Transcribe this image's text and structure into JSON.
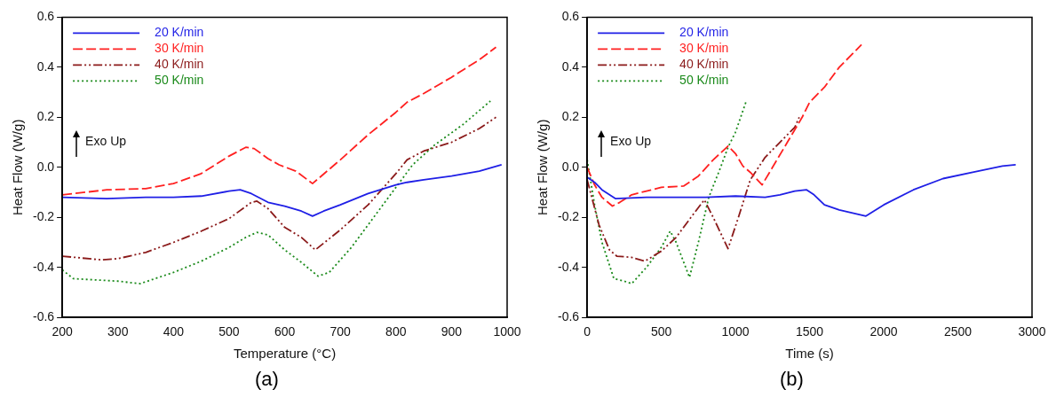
{
  "chart_data": [
    {
      "type": "line",
      "xlabel": "Temperature (°C)",
      "ylabel": "Heat Flow (W/g)",
      "annotations": [
        "Exo Up",
        "(a)"
      ],
      "xlim": [
        200,
        1000
      ],
      "xticks": [
        200,
        300,
        400,
        500,
        600,
        700,
        800,
        900,
        1000
      ],
      "ylim": [
        -0.6,
        0.6
      ],
      "yticks": [
        -0.6,
        -0.4,
        -0.2,
        {
          "value": 0,
          "label": "0.0"
        },
        0.2,
        0.4,
        0.6
      ],
      "grid": false,
      "legend": "top left",
      "marker": "none",
      "series": [
        {
          "name": "20 K/min",
          "color": "#1f1fe6",
          "line_style": "solid",
          "x": [
            200,
            280,
            350,
            400,
            450,
            500,
            520,
            540,
            570,
            600,
            630,
            650,
            670,
            700,
            750,
            800,
            820,
            850,
            900,
            950,
            990
          ],
          "values": [
            -0.12,
            -0.125,
            -0.12,
            -0.12,
            -0.115,
            -0.095,
            -0.09,
            -0.105,
            -0.14,
            -0.155,
            -0.175,
            -0.195,
            -0.175,
            -0.15,
            -0.105,
            -0.07,
            -0.06,
            -0.05,
            -0.035,
            -0.015,
            0.01
          ]
        },
        {
          "name": "30 K/min",
          "color": "#ff2020",
          "line_style": "dashed",
          "x": [
            200,
            280,
            350,
            400,
            450,
            500,
            530,
            545,
            570,
            590,
            620,
            650,
            700,
            750,
            800,
            820,
            850,
            900,
            950,
            980
          ],
          "values": [
            -0.11,
            -0.09,
            -0.085,
            -0.065,
            -0.025,
            0.045,
            0.08,
            0.075,
            0.035,
            0.01,
            -0.015,
            -0.065,
            0.03,
            0.13,
            0.22,
            0.26,
            0.295,
            0.36,
            0.43,
            0.48
          ]
        },
        {
          "name": "40 K/min",
          "color": "#8b1a1a",
          "line_style": "dashdot",
          "x": [
            200,
            270,
            300,
            350,
            400,
            450,
            500,
            540,
            550,
            570,
            600,
            630,
            655,
            700,
            750,
            780,
            800,
            820,
            850,
            900,
            950,
            980
          ],
          "values": [
            -0.355,
            -0.37,
            -0.365,
            -0.34,
            -0.3,
            -0.255,
            -0.205,
            -0.14,
            -0.135,
            -0.165,
            -0.24,
            -0.28,
            -0.33,
            -0.25,
            -0.15,
            -0.075,
            -0.025,
            0.03,
            0.065,
            0.1,
            0.155,
            0.2
          ]
        },
        {
          "name": "50 K/min",
          "color": "#1a8a1a",
          "line_style": "dotted",
          "x": [
            200,
            220,
            260,
            300,
            340,
            400,
            450,
            500,
            530,
            550,
            570,
            600,
            630,
            660,
            680,
            720,
            760,
            800,
            830,
            870,
            920,
            970
          ],
          "values": [
            -0.41,
            -0.445,
            -0.45,
            -0.455,
            -0.465,
            -0.42,
            -0.375,
            -0.32,
            -0.28,
            -0.26,
            -0.27,
            -0.33,
            -0.38,
            -0.435,
            -0.42,
            -0.32,
            -0.2,
            -0.08,
            0.01,
            0.09,
            0.17,
            0.265
          ]
        }
      ]
    },
    {
      "type": "line",
      "xlabel": "Time (s)",
      "ylabel": "Heat Flow (W/g)",
      "annotations": [
        "Exo Up",
        "(b)"
      ],
      "xlim": [
        0,
        3000
      ],
      "xticks": [
        0,
        500,
        1000,
        1500,
        2000,
        2500,
        3000
      ],
      "ylim": [
        -0.6,
        0.6
      ],
      "yticks": [
        -0.6,
        -0.4,
        -0.2,
        {
          "value": 0,
          "label": "0.0"
        },
        0.2,
        0.4,
        0.6
      ],
      "grid": false,
      "legend": "top left",
      "marker": "none",
      "series": [
        {
          "name": "20 K/min",
          "color": "#1f1fe6",
          "line_style": "solid",
          "x": [
            0,
            50,
            100,
            190,
            400,
            800,
            1000,
            1200,
            1300,
            1400,
            1480,
            1530,
            1600,
            1700,
            1880,
            2000,
            2200,
            2400,
            2600,
            2800,
            2890
          ],
          "values": [
            -0.04,
            -0.06,
            -0.09,
            -0.125,
            -0.12,
            -0.12,
            -0.115,
            -0.12,
            -0.11,
            -0.095,
            -0.09,
            -0.11,
            -0.15,
            -0.17,
            -0.195,
            -0.15,
            -0.09,
            -0.045,
            -0.02,
            0.005,
            0.01
          ]
        },
        {
          "name": "30 K/min",
          "color": "#ff2020",
          "line_style": "dashed",
          "x": [
            0,
            50,
            100,
            170,
            220,
            300,
            400,
            500,
            650,
            750,
            850,
            950,
            1000,
            1050,
            1100,
            1180,
            1250,
            1350,
            1450,
            1500,
            1600,
            1700,
            1850
          ],
          "values": [
            0,
            -0.07,
            -0.12,
            -0.155,
            -0.14,
            -0.11,
            -0.095,
            -0.08,
            -0.075,
            -0.035,
            0.03,
            0.085,
            0.055,
            0.005,
            -0.02,
            -0.07,
            0,
            0.1,
            0.2,
            0.26,
            0.32,
            0.4,
            0.49
          ]
        },
        {
          "name": "40 K/min",
          "color": "#8b1a1a",
          "line_style": "dashdot",
          "x": [
            0,
            80,
            150,
            200,
            300,
            390,
            500,
            600,
            700,
            790,
            850,
            950,
            1020,
            1100,
            1200,
            1300,
            1400,
            1430
          ],
          "values": [
            -0.05,
            -0.23,
            -0.33,
            -0.355,
            -0.36,
            -0.375,
            -0.335,
            -0.28,
            -0.2,
            -0.13,
            -0.2,
            -0.325,
            -0.2,
            -0.05,
            0.04,
            0.1,
            0.16,
            0.2
          ]
        },
        {
          "name": "50 K/min",
          "color": "#1a8a1a",
          "line_style": "dotted",
          "x": [
            0,
            50,
            100,
            180,
            250,
            300,
            400,
            500,
            560,
            600,
            690,
            750,
            820,
            900,
            950,
            1000,
            1070
          ],
          "values": [
            0.03,
            -0.15,
            -0.3,
            -0.445,
            -0.455,
            -0.465,
            -0.4,
            -0.32,
            -0.255,
            -0.3,
            -0.44,
            -0.3,
            -0.12,
            0,
            0.08,
            0.14,
            0.26
          ]
        }
      ]
    }
  ]
}
